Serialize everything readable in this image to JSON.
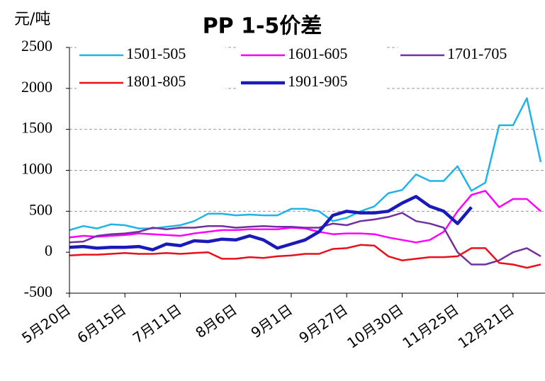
{
  "chart_data": {
    "type": "line",
    "title": "PP 1-5价差",
    "y_label": "元/吨",
    "categories": [
      "5月20日",
      null,
      null,
      null,
      "6月15日",
      null,
      null,
      null,
      "7月11日",
      null,
      null,
      null,
      "8月6日",
      null,
      null,
      null,
      "9月1日",
      null,
      null,
      null,
      "9月27日",
      null,
      null,
      null,
      "10月30日",
      null,
      null,
      null,
      "11月25日",
      null,
      null,
      null,
      "12月21日",
      null,
      null
    ],
    "series": [
      {
        "name": "1501-505",
        "color": "#1fb4e8",
        "width": 2.5,
        "values": [
          270,
          320,
          290,
          340,
          330,
          290,
          290,
          310,
          330,
          380,
          470,
          470,
          450,
          460,
          450,
          450,
          530,
          530,
          500,
          380,
          420,
          500,
          560,
          720,
          760,
          950,
          870,
          870,
          1050,
          750,
          850,
          1550,
          1550,
          1880,
          1100
        ]
      },
      {
        "name": "1601-605",
        "color": "#ff00ff",
        "width": 2.5,
        "values": [
          180,
          200,
          190,
          200,
          210,
          230,
          220,
          210,
          200,
          230,
          250,
          270,
          270,
          280,
          280,
          280,
          300,
          290,
          250,
          220,
          230,
          230,
          220,
          180,
          150,
          120,
          150,
          250,
          500,
          700,
          750,
          550,
          650,
          650,
          500
        ]
      },
      {
        "name": "1701-705",
        "color": "#7030a0",
        "width": 2.5,
        "values": [
          120,
          130,
          200,
          220,
          230,
          250,
          300,
          280,
          300,
          300,
          320,
          320,
          300,
          310,
          320,
          310,
          310,
          300,
          300,
          350,
          330,
          380,
          400,
          430,
          480,
          380,
          350,
          300,
          0,
          -150,
          -150,
          -100,
          0,
          50,
          -50
        ]
      },
      {
        "name": "1801-805",
        "color": "#e8101a",
        "width": 2.5,
        "values": [
          -40,
          -30,
          -30,
          -20,
          -10,
          -20,
          -20,
          -10,
          -20,
          -10,
          0,
          -80,
          -80,
          -60,
          -70,
          -50,
          -40,
          -20,
          -20,
          40,
          50,
          90,
          80,
          -50,
          -100,
          -80,
          -60,
          -60,
          -50,
          50,
          50,
          -130,
          -150,
          -190,
          -150
        ]
      },
      {
        "name": "1901-905",
        "color": "#1a1ab8",
        "width": 4.5,
        "values": [
          60,
          70,
          50,
          60,
          60,
          70,
          30,
          100,
          80,
          140,
          130,
          160,
          150,
          200,
          150,
          50,
          100,
          150,
          250,
          450,
          500,
          480,
          480,
          500,
          600,
          680,
          560,
          500,
          350,
          550,
          null,
          null,
          null,
          null,
          null
        ]
      }
    ],
    "ylim": [
      -500,
      2500
    ],
    "yticks": [
      -500,
      0,
      500,
      1000,
      1500,
      2000,
      2500
    ],
    "grid": true
  }
}
